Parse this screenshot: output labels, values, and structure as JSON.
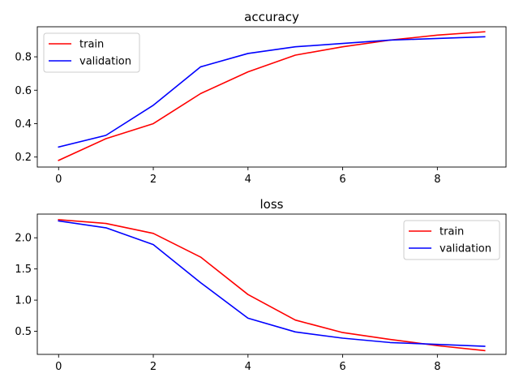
{
  "chart_data": [
    {
      "type": "line",
      "title": "accuracy",
      "xlabel": "",
      "ylabel": "",
      "x": [
        0,
        1,
        2,
        3,
        4,
        5,
        6,
        7,
        8,
        9
      ],
      "xlim": [
        -0.45,
        9.45
      ],
      "ylim": [
        0.14,
        0.98
      ],
      "xticks": [
        0,
        2,
        4,
        6,
        8
      ],
      "yticks": [
        0.2,
        0.4,
        0.6,
        0.8
      ],
      "ytick_labels": [
        "0.2",
        "0.4",
        "0.6",
        "0.8"
      ],
      "legend_position": "top-left",
      "grid": false,
      "series": [
        {
          "name": "train",
          "color": "#ff0000",
          "values": [
            0.18,
            0.31,
            0.4,
            0.58,
            0.71,
            0.81,
            0.86,
            0.9,
            0.93,
            0.95
          ]
        },
        {
          "name": "validation",
          "color": "#0000ff",
          "values": [
            0.26,
            0.33,
            0.51,
            0.74,
            0.82,
            0.86,
            0.88,
            0.9,
            0.91,
            0.92
          ]
        }
      ]
    },
    {
      "type": "line",
      "title": "loss",
      "xlabel": "",
      "ylabel": "",
      "x": [
        0,
        1,
        2,
        3,
        4,
        5,
        6,
        7,
        8,
        9
      ],
      "xlim": [
        -0.45,
        9.45
      ],
      "ylim": [
        0.13,
        2.38
      ],
      "xticks": [
        0,
        2,
        4,
        6,
        8
      ],
      "yticks": [
        0.5,
        1.0,
        1.5,
        2.0
      ],
      "ytick_labels": [
        "0.5",
        "1.0",
        "1.5",
        "2.0"
      ],
      "legend_position": "top-right",
      "grid": false,
      "series": [
        {
          "name": "train",
          "color": "#ff0000",
          "values": [
            2.29,
            2.23,
            2.07,
            1.69,
            1.09,
            0.68,
            0.48,
            0.37,
            0.27,
            0.19
          ]
        },
        {
          "name": "validation",
          "color": "#0000ff",
          "values": [
            2.27,
            2.16,
            1.89,
            1.28,
            0.71,
            0.49,
            0.39,
            0.32,
            0.29,
            0.26
          ]
        }
      ]
    }
  ]
}
